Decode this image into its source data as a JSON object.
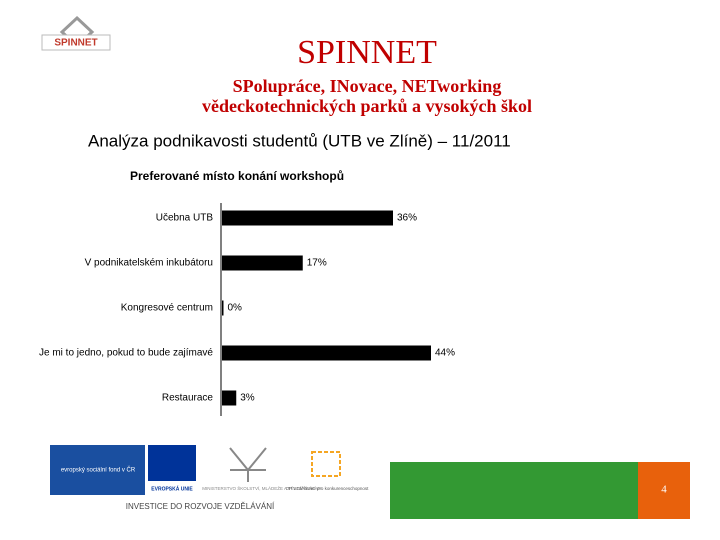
{
  "slide": {
    "logo_text": "SPINNET",
    "title": "SPINNET",
    "subtitle_lines": [
      "SPolupráce, INovace, NETworking",
      "vědeckotechnických parků a vysokých škol"
    ],
    "heading": "Analýza podnikavosti studentů (UTB ve Zlíně) – 11/2011",
    "footer_logos": [
      "evropský sociální fond v ČR",
      "EVROPSKÁ UNIE",
      "MINISTERSTVO ŠKOLSTVÍ, MLÁDEŽE A TĚLOVÝCHOVY",
      "OP Vzdělávání pro konkurenceschopnost",
      "INVESTICE DO ROZVOJE VZDĚLÁVÁNÍ"
    ],
    "page_number": "4"
  },
  "chart_data": {
    "type": "bar",
    "orientation": "horizontal",
    "title": "Preferované místo konání workshopů",
    "categories": [
      "Učebna UTB",
      "V podnikatelském inkubátoru",
      "Kongresové centrum",
      "Je mi to jedno, pokud to bude zajímavé",
      "Restaurace"
    ],
    "values": [
      36,
      17,
      0,
      44,
      3
    ],
    "value_labels": [
      "36%",
      "17%",
      "0%",
      "44%",
      "3%"
    ],
    "color": "#000000"
  }
}
